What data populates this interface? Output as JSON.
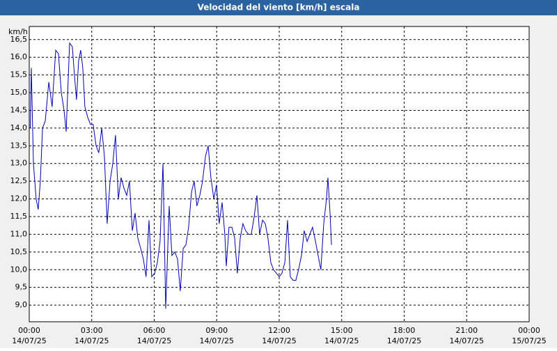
{
  "chart_data": {
    "type": "line",
    "title": "Velocidad del viento [km/h] escala",
    "y_label": "km/h",
    "x": [
      0.05,
      0.1,
      0.2,
      0.33,
      0.43,
      0.53,
      0.64,
      0.77,
      0.94,
      1.1,
      1.27,
      1.4,
      1.54,
      1.67,
      1.77,
      1.94,
      2.07,
      2.17,
      2.27,
      2.37,
      2.47,
      2.57,
      2.67,
      2.81,
      2.94,
      3.07,
      3.21,
      3.34,
      3.48,
      3.61,
      3.74,
      3.88,
      4.01,
      4.14,
      4.28,
      4.41,
      4.55,
      4.68,
      4.81,
      4.95,
      5.08,
      5.21,
      5.35,
      5.48,
      5.61,
      5.75,
      5.88,
      6.02,
      6.15,
      6.28,
      6.42,
      6.55,
      6.72,
      6.85,
      6.99,
      7.12,
      7.25,
      7.39,
      7.52,
      7.65,
      7.79,
      7.92,
      8.05,
      8.19,
      8.32,
      8.46,
      8.59,
      8.72,
      8.86,
      8.99,
      9.12,
      9.26,
      9.39,
      9.46,
      9.59,
      9.73,
      9.86,
      9.99,
      10.13,
      10.26,
      10.39,
      10.53,
      10.66,
      10.8,
      10.93,
      11.06,
      11.2,
      11.33,
      11.46,
      11.6,
      11.73,
      11.87,
      12.0,
      12.13,
      12.27,
      12.4,
      12.53,
      12.67,
      12.8,
      12.93,
      13.07,
      13.2,
      13.34,
      13.47,
      13.6,
      13.74,
      13.87,
      14.0,
      14.14,
      14.27,
      14.34,
      14.44,
      14.51
    ],
    "series": [
      {
        "name": "Velocidad del viento",
        "color": "#0000b4",
        "values": [
          14.0,
          15.7,
          13.0,
          12.0,
          11.7,
          12.5,
          14.0,
          14.2,
          15.3,
          14.6,
          16.2,
          16.1,
          15.0,
          14.5,
          13.9,
          16.4,
          16.3,
          15.5,
          14.8,
          15.9,
          16.2,
          15.7,
          14.6,
          14.3,
          14.1,
          14.1,
          13.5,
          13.3,
          14.0,
          13.2,
          11.3,
          12.5,
          13.0,
          13.8,
          12.0,
          12.6,
          12.3,
          12.1,
          12.5,
          11.1,
          11.6,
          10.9,
          10.6,
          10.3,
          9.8,
          11.4,
          9.8,
          9.9,
          10.2,
          10.8,
          13.0,
          8.9,
          11.8,
          10.4,
          10.5,
          10.3,
          9.4,
          10.6,
          10.7,
          11.2,
          12.2,
          12.5,
          11.8,
          12.1,
          12.5,
          13.2,
          13.5,
          12.6,
          12.0,
          12.4,
          11.3,
          11.9,
          11.0,
          10.1,
          11.2,
          11.2,
          10.9,
          9.9,
          10.9,
          11.3,
          11.1,
          11.0,
          11.0,
          11.5,
          12.1,
          11.0,
          11.4,
          11.3,
          10.9,
          10.2,
          10.0,
          9.9,
          9.8,
          9.9,
          10.2,
          11.4,
          9.8,
          9.7,
          9.7,
          10.0,
          10.4,
          11.1,
          10.8,
          11.0,
          11.2,
          10.8,
          10.4,
          10.0,
          11.3,
          12.0,
          12.6,
          11.6,
          10.7
        ]
      }
    ],
    "xlim": [
      0,
      24
    ],
    "xticks": [
      {
        "value": 0,
        "label": "00:00"
      },
      {
        "value": 3,
        "label": "03:00"
      },
      {
        "value": 6,
        "label": "06:00"
      },
      {
        "value": 9,
        "label": "09:00"
      },
      {
        "value": 12,
        "label": "12:00"
      },
      {
        "value": 15,
        "label": "15:00"
      },
      {
        "value": 18,
        "label": "18:00"
      },
      {
        "value": 21,
        "label": "21:00"
      },
      {
        "value": 24,
        "label": "00:00"
      }
    ],
    "xtick_dates": [
      "14/07/25",
      "14/07/25",
      "14/07/25",
      "14/07/25",
      "14/07/25",
      "14/07/25",
      "14/07/25",
      "14/07/25",
      "15/07/25"
    ],
    "ylim": [
      8.53,
      16.87
    ],
    "yticks": [
      {
        "value": 9,
        "label": "9,0"
      },
      {
        "value": 9.5,
        "label": "9,5"
      },
      {
        "value": 10,
        "label": "10,0"
      },
      {
        "value": 10.5,
        "label": "10,5"
      },
      {
        "value": 11,
        "label": "11,0"
      },
      {
        "value": 11.5,
        "label": "11,5"
      },
      {
        "value": 12,
        "label": "12,0"
      },
      {
        "value": 12.5,
        "label": "12,5"
      },
      {
        "value": 13,
        "label": "13,0"
      },
      {
        "value": 13.5,
        "label": "13,5"
      },
      {
        "value": 14,
        "label": "14,0"
      },
      {
        "value": 14.5,
        "label": "14,5"
      },
      {
        "value": 15,
        "label": "15,0"
      },
      {
        "value": 15.5,
        "label": "15,5"
      },
      {
        "value": 16,
        "label": "16,0"
      },
      {
        "value": 16.5,
        "label": "16,5"
      }
    ],
    "grid": true
  }
}
